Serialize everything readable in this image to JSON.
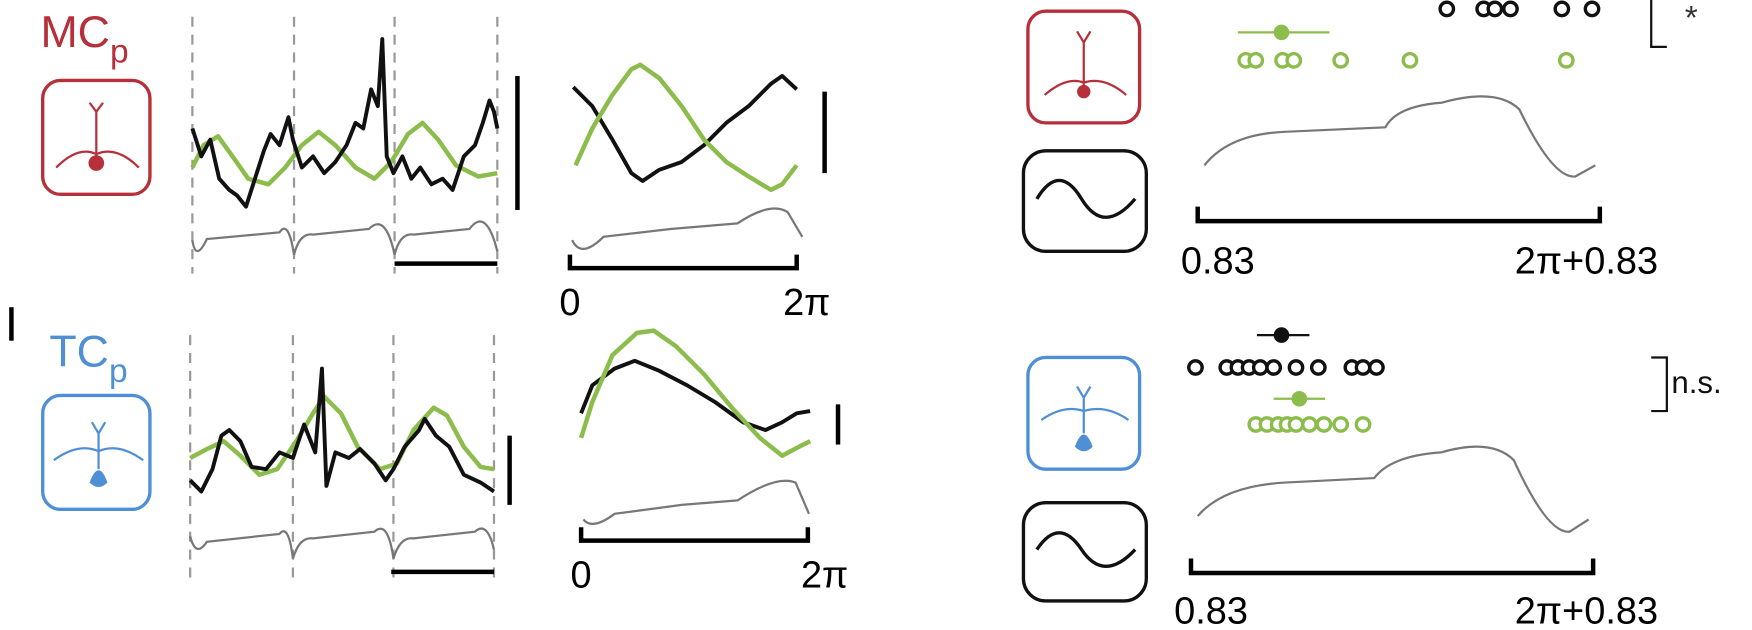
{
  "labels": {
    "mc": "MC",
    "mc_sub": "p",
    "tc": "TC",
    "tc_sub": "p"
  },
  "phase_axes": [
    {
      "start": "0",
      "end": "2π"
    },
    {
      "start": "0",
      "end": "2π"
    }
  ],
  "shifted_axes": [
    {
      "start": "0.83",
      "end": "2π+0.83"
    },
    {
      "start": "0.83",
      "end": "2π+0.83"
    }
  ],
  "significance": [
    "*",
    "n.s."
  ]
}
